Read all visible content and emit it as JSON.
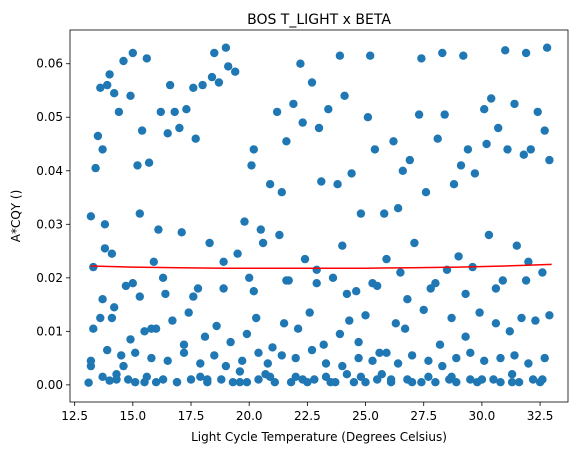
{
  "chart_data": {
    "type": "scatter",
    "title": "BOS T_LIGHT x BETA",
    "xlabel": "Light Cycle Temperature (Degrees Celsius)",
    "ylabel": "A*CQY ()",
    "xlim": [
      12.3,
      33.7
    ],
    "ylim": [
      -0.0032,
      0.0663
    ],
    "xticks": [
      "12.5",
      "15.0",
      "17.5",
      "20.0",
      "22.5",
      "25.0",
      "27.5",
      "30.0",
      "32.5"
    ],
    "yticks": [
      "0.00",
      "0.01",
      "0.02",
      "0.03",
      "0.04",
      "0.05",
      "0.06"
    ],
    "grid": false,
    "colors": {
      "points": "#1f77b4",
      "fit_line": "#ff0000"
    },
    "series": [
      {
        "kind": "points",
        "x": [
          13.1,
          13.2,
          13.3,
          13.6,
          13.7,
          13.7,
          13.8,
          14.0,
          14.0,
          14.1,
          14.3,
          14.5,
          14.6,
          14.8,
          15.0,
          15.1,
          15.3,
          15.5,
          15.6,
          15.8,
          16.0,
          16.1,
          16.3,
          16.6,
          16.9,
          17.2,
          17.5,
          17.6,
          17.9,
          18.2,
          18.5,
          18.8,
          19.0,
          19.3,
          19.6,
          19.9,
          20.2,
          20.4,
          20.7,
          21.1,
          21.4,
          21.8,
          22.0,
          22.2,
          22.5,
          22.8,
          23.1,
          23.3,
          23.7,
          23.9,
          24.2,
          24.5,
          24.7,
          25.0,
          25.2,
          25.5,
          25.7,
          26.1,
          26.4,
          26.8,
          27.0,
          27.4,
          27.7,
          28.0,
          28.3,
          28.6,
          28.9,
          29.2,
          29.5,
          29.8,
          30.2,
          30.5,
          30.8,
          31.0,
          31.3,
          31.6,
          31.9,
          32.2,
          32.5,
          32.8,
          13.2,
          13.5,
          13.9,
          14.2,
          14.4,
          14.9,
          15.2,
          15.4,
          15.7,
          16.2,
          16.5,
          16.8,
          17.0,
          17.3,
          17.7,
          18.0,
          18.4,
          18.7,
          19.1,
          19.4,
          19.8,
          20.1,
          20.5,
          20.9,
          21.2,
          21.6,
          21.9,
          22.3,
          22.7,
          23.0,
          23.4,
          23.8,
          24.1,
          24.4,
          24.8,
          25.1,
          25.4,
          25.8,
          26.2,
          26.6,
          26.9,
          27.3,
          27.6,
          28.1,
          28.4,
          28.8,
          29.1,
          29.4,
          29.7,
          30.1,
          30.4,
          30.7,
          31.1,
          31.4,
          31.8,
          32.1,
          32.4,
          32.7,
          32.9,
          13.4,
          13.3,
          13.8,
          14.1,
          14.7,
          15.3,
          15.9,
          16.4,
          17.1,
          17.8,
          18.3,
          18.9,
          19.5,
          20.0,
          20.6,
          21.3,
          21.7,
          22.4,
          22.9,
          23.6,
          24.0,
          24.6,
          25.3,
          25.9,
          26.5,
          27.1,
          27.8,
          28.5,
          29.0,
          29.6,
          30.3,
          30.9,
          31.5,
          32.0,
          32.6,
          13.6,
          14.2,
          14.9,
          15.5,
          16.0,
          16.7,
          17.4,
          18.1,
          18.6,
          19.2,
          19.9,
          20.3,
          21.0,
          21.5,
          22.1,
          22.6,
          23.2,
          23.9,
          24.3,
          25.0,
          25.6,
          26.3,
          26.7,
          27.5,
          28.2,
          28.7,
          29.3,
          29.9,
          30.6,
          31.2,
          31.7,
          32.3,
          32.9,
          13.2,
          13.9,
          14.6,
          15.1,
          15.8,
          16.5,
          17.2,
          17.9,
          18.5,
          19.0,
          19.7,
          20.4,
          20.8,
          21.4,
          22.0,
          22.7,
          23.3,
          24.0,
          24.7,
          25.3,
          25.9,
          26.4,
          27.0,
          27.7,
          28.3,
          28.9,
          29.5,
          30.1,
          30.8,
          31.4,
          32.0,
          32.7,
          13.7,
          14.3,
          15.0,
          15.6,
          16.3,
          16.9,
          17.6,
          18.2,
          18.9,
          19.6,
          20.2,
          20.9,
          21.6,
          22.3,
          22.9,
          23.5,
          24.2,
          24.8,
          25.5,
          26.1,
          26.8,
          27.4,
          28.0,
          28.7,
          29.3,
          30.0,
          30.6,
          31.3,
          31.9,
          32.6
        ],
        "y": [
          0.0004,
          0.0035,
          0.0105,
          0.0555,
          0.0015,
          0.044,
          0.0255,
          0.0008,
          0.058,
          0.0125,
          0.002,
          0.0055,
          0.0605,
          0.001,
          0.062,
          0.0005,
          0.032,
          0.0005,
          0.061,
          0.0105,
          0.0005,
          0.029,
          0.001,
          0.056,
          0.0005,
          0.0075,
          0.001,
          0.0555,
          0.0015,
          0.0005,
          0.062,
          0.001,
          0.063,
          0.0005,
          0.0025,
          0.0005,
          0.044,
          0.001,
          0.002,
          0.0005,
          0.036,
          0.0005,
          0.0015,
          0.06,
          0.0005,
          0.001,
          0.038,
          0.0015,
          0.0005,
          0.0615,
          0.002,
          0.0005,
          0.008,
          0.0005,
          0.0615,
          0.001,
          0.002,
          0.0005,
          0.033,
          0.001,
          0.0005,
          0.061,
          0.0015,
          0.0005,
          0.062,
          0.001,
          0.0005,
          0.0615,
          0.001,
          0.0005,
          0.045,
          0.001,
          0.0005,
          0.0625,
          0.002,
          0.0005,
          0.062,
          0.001,
          0.0005,
          0.063,
          0.0315,
          0.0465,
          0.056,
          0.0545,
          0.051,
          0.054,
          0.041,
          0.0475,
          0.0415,
          0.051,
          0.047,
          0.051,
          0.048,
          0.0515,
          0.046,
          0.056,
          0.0575,
          0.0565,
          0.0595,
          0.0585,
          0.0305,
          0.041,
          0.029,
          0.0375,
          0.051,
          0.0455,
          0.0525,
          0.049,
          0.0565,
          0.048,
          0.0515,
          0.0375,
          0.054,
          0.0395,
          0.032,
          0.05,
          0.044,
          0.032,
          0.0455,
          0.04,
          0.042,
          0.0505,
          0.036,
          0.046,
          0.0505,
          0.0375,
          0.041,
          0.044,
          0.0395,
          0.0515,
          0.0535,
          0.048,
          0.044,
          0.0525,
          0.043,
          0.044,
          0.051,
          0.0475,
          0.042,
          0.0405,
          0.022,
          0.03,
          0.0245,
          0.0185,
          0.0165,
          0.023,
          0.017,
          0.0285,
          0.018,
          0.0265,
          0.023,
          0.0245,
          0.02,
          0.0265,
          0.028,
          0.0195,
          0.0235,
          0.0215,
          0.02,
          0.026,
          0.0175,
          0.019,
          0.0235,
          0.021,
          0.0265,
          0.018,
          0.0215,
          0.024,
          0.022,
          0.028,
          0.0195,
          0.026,
          0.023,
          0.021,
          0.0125,
          0.0145,
          0.0085,
          0.01,
          0.0105,
          0.012,
          0.0135,
          0.009,
          0.011,
          0.008,
          0.0095,
          0.0125,
          0.007,
          0.0115,
          0.0105,
          0.0135,
          0.0075,
          0.0095,
          0.012,
          0.013,
          0.006,
          0.0115,
          0.0105,
          0.014,
          0.0075,
          0.0125,
          0.009,
          0.0135,
          0.0115,
          0.01,
          0.0125,
          0.012,
          0.013,
          0.0045,
          0.0065,
          0.0035,
          0.006,
          0.005,
          0.0045,
          0.006,
          0.004,
          0.0055,
          0.0035,
          0.0045,
          0.006,
          0.004,
          0.0055,
          0.005,
          0.0065,
          0.004,
          0.0035,
          0.005,
          0.0045,
          0.006,
          0.004,
          0.0055,
          0.0045,
          0.0035,
          0.005,
          0.006,
          0.0045,
          0.005,
          0.0055,
          0.004,
          0.005,
          0.016,
          0.001,
          0.019,
          0.0015,
          0.02,
          0.0005,
          0.0165,
          0.001,
          0.018,
          0.0005,
          0.0175,
          0.0015,
          0.0195,
          0.001,
          0.019,
          0.0005,
          0.017,
          0.0015,
          0.0185,
          0.001,
          0.016,
          0.0005,
          0.019,
          0.0015,
          0.017,
          0.001,
          0.018,
          0.0005,
          0.0195,
          0.001
        ]
      },
      {
        "kind": "fit_line",
        "x": [
          13.2,
          15.0,
          17.0,
          19.0,
          21.0,
          23.0,
          25.0,
          27.0,
          29.0,
          31.0,
          33.0
        ],
        "y": [
          0.0222,
          0.022,
          0.0219,
          0.0218,
          0.0218,
          0.0218,
          0.0218,
          0.0219,
          0.022,
          0.0222,
          0.0225
        ]
      }
    ]
  }
}
